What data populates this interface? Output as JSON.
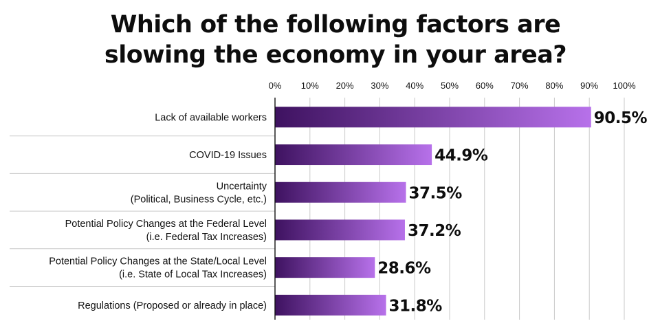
{
  "chart_data": {
    "type": "bar",
    "orientation": "horizontal",
    "title_lines": [
      "Which of the following factors are",
      "slowing the economy in your area?"
    ],
    "categories": [
      [
        "Lack of available workers"
      ],
      [
        "COVID-19 Issues"
      ],
      [
        "Uncertainty",
        "(Political, Business Cycle, etc.)"
      ],
      [
        "Potential Policy Changes at the Federal Level",
        "(i.e. Federal Tax Increases)"
      ],
      [
        "Potential Policy Changes at the State/Local Level",
        "(i.e. State of Local Tax Increases)"
      ],
      [
        "Regulations (Proposed or already in place)"
      ]
    ],
    "values": [
      90.5,
      44.9,
      37.5,
      37.2,
      28.6,
      31.8
    ],
    "value_labels": [
      "90.5%",
      "44.9%",
      "37.5%",
      "37.2%",
      "28.6%",
      "31.8%"
    ],
    "xlim": [
      0,
      100
    ],
    "xticks": [
      0,
      10,
      20,
      30,
      40,
      50,
      60,
      70,
      80,
      90,
      100
    ],
    "xtick_labels": [
      "0%",
      "10%",
      "20%",
      "30%",
      "40%",
      "50%",
      "60%",
      "70%",
      "80%",
      "90%",
      "100%"
    ],
    "axis_position": "top",
    "grid": true,
    "legend": "none",
    "bar_gradient": [
      "#3e1260",
      "#b771ea"
    ],
    "grid_color": "#c9c9c9"
  }
}
